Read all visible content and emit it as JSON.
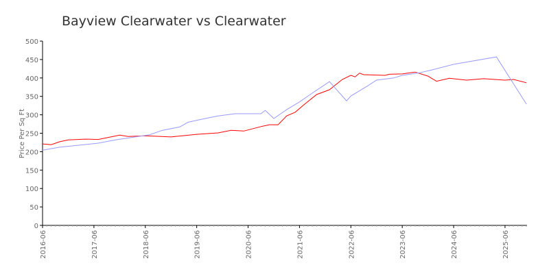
{
  "chart_data": {
    "type": "line",
    "title": "Bayview Clearwater vs Clearwater",
    "xlabel": "",
    "ylabel": "Price Per Sq Ft",
    "ylim": [
      0,
      500
    ],
    "xlim": [
      "2016-06",
      "2025-11"
    ],
    "yticks": [
      "0",
      "50",
      "100",
      "150",
      "200",
      "250",
      "300",
      "350",
      "400",
      "450",
      "500"
    ],
    "xticks": [
      "2016-06",
      "2017-06",
      "2018-06",
      "2019-06",
      "2020-06",
      "2021-06",
      "2022-06",
      "2023-06",
      "2024-06",
      "2025-06"
    ],
    "grid": false,
    "legend": "none",
    "series": [
      {
        "color": "#ff0000",
        "points": [
          [
            "2016-06",
            221
          ],
          [
            "2016-08",
            219
          ],
          [
            "2016-10",
            227
          ],
          [
            "2016-12",
            232
          ],
          [
            "2017-04",
            234
          ],
          [
            "2017-07",
            233
          ],
          [
            "2017-12",
            245
          ],
          [
            "2018-02",
            241
          ],
          [
            "2018-06",
            243
          ],
          [
            "2018-12",
            240
          ],
          [
            "2019-06",
            247
          ],
          [
            "2019-11",
            251
          ],
          [
            "2020-02",
            258
          ],
          [
            "2020-05",
            256
          ],
          [
            "2020-09",
            268
          ],
          [
            "2020-11",
            273
          ],
          [
            "2021-01",
            273
          ],
          [
            "2021-03",
            297
          ],
          [
            "2021-05",
            307
          ],
          [
            "2021-07",
            327
          ],
          [
            "2021-10",
            355
          ],
          [
            "2022-01",
            368
          ],
          [
            "2022-04",
            396
          ],
          [
            "2022-06",
            407
          ],
          [
            "2022-07",
            403
          ],
          [
            "2022-08",
            413
          ],
          [
            "2022-09",
            409
          ],
          [
            "2023-02",
            407
          ],
          [
            "2023-03",
            410
          ],
          [
            "2023-06",
            411
          ],
          [
            "2023-09",
            416
          ],
          [
            "2023-12",
            405
          ],
          [
            "2024-02",
            391
          ],
          [
            "2024-05",
            399
          ],
          [
            "2024-09",
            394
          ],
          [
            "2025-01",
            398
          ],
          [
            "2025-06",
            394
          ],
          [
            "2025-08",
            396
          ],
          [
            "2025-11",
            387
          ]
        ]
      },
      {
        "color": "#9999ff",
        "points": [
          [
            "2016-06",
            204
          ],
          [
            "2016-10",
            212
          ],
          [
            "2017-07",
            223
          ],
          [
            "2017-11",
            232
          ],
          [
            "2018-07",
            246
          ],
          [
            "2018-10",
            258
          ],
          [
            "2019-02",
            267
          ],
          [
            "2019-04",
            280
          ],
          [
            "2019-08",
            290
          ],
          [
            "2019-11",
            297
          ],
          [
            "2020-03",
            303
          ],
          [
            "2020-09",
            303
          ],
          [
            "2020-10",
            312
          ],
          [
            "2020-12",
            290
          ],
          [
            "2021-03",
            314
          ],
          [
            "2021-06",
            335
          ],
          [
            "2021-09",
            359
          ],
          [
            "2022-01",
            390
          ],
          [
            "2022-05",
            338
          ],
          [
            "2022-06",
            351
          ],
          [
            "2022-10",
            379
          ],
          [
            "2022-12",
            394
          ],
          [
            "2023-04",
            400
          ],
          [
            "2023-06",
            407
          ],
          [
            "2023-10",
            414
          ],
          [
            "2024-01",
            422
          ],
          [
            "2024-06",
            437
          ],
          [
            "2025-04",
            457
          ],
          [
            "2025-11",
            329
          ]
        ]
      }
    ]
  }
}
